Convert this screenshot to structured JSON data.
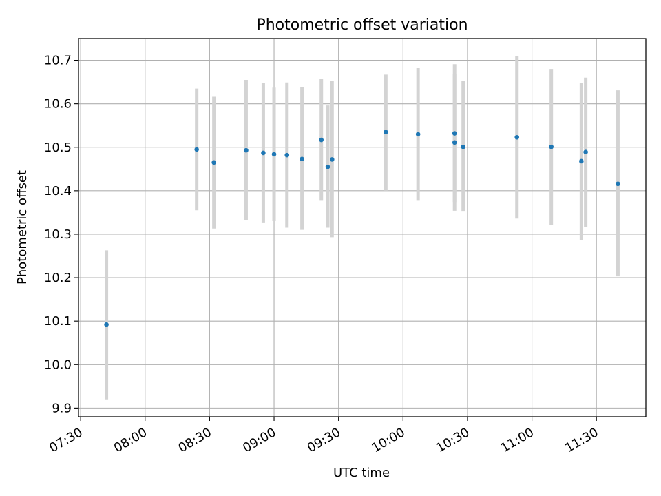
{
  "chart_data": {
    "type": "scatter",
    "title": "Photometric offset variation",
    "xlabel": "UTC time",
    "ylabel": "Photometric offset",
    "x_tick_labels": [
      "07:30",
      "08:00",
      "08:30",
      "09:00",
      "09:30",
      "10:00",
      "10:30",
      "11:00",
      "11:30"
    ],
    "y_tick_labels": [
      "9.9",
      "10.0",
      "10.1",
      "10.2",
      "10.3",
      "10.4",
      "10.5",
      "10.6",
      "10.7"
    ],
    "xlim": [
      "07:29",
      "11:53"
    ],
    "ylim": [
      9.88,
      10.75
    ],
    "grid": true,
    "colors": {
      "point": "#1f77b4",
      "errorbar": "#d3d3d3",
      "grid": "#b0b0b0"
    },
    "points": [
      {
        "x": "07:42",
        "y": 10.092,
        "lo": 9.92,
        "hi": 10.263
      },
      {
        "x": "08:24",
        "y": 10.495,
        "lo": 10.355,
        "hi": 10.635
      },
      {
        "x": "08:32",
        "y": 10.465,
        "lo": 10.313,
        "hi": 10.616
      },
      {
        "x": "08:47",
        "y": 10.493,
        "lo": 10.332,
        "hi": 10.655
      },
      {
        "x": "08:55",
        "y": 10.487,
        "lo": 10.327,
        "hi": 10.647
      },
      {
        "x": "09:00",
        "y": 10.484,
        "lo": 10.33,
        "hi": 10.637
      },
      {
        "x": "09:06",
        "y": 10.482,
        "lo": 10.315,
        "hi": 10.649
      },
      {
        "x": "09:13",
        "y": 10.473,
        "lo": 10.31,
        "hi": 10.638
      },
      {
        "x": "09:22",
        "y": 10.517,
        "lo": 10.377,
        "hi": 10.658
      },
      {
        "x": "09:25",
        "y": 10.455,
        "lo": 10.315,
        "hi": 10.596
      },
      {
        "x": "09:27",
        "y": 10.472,
        "lo": 10.293,
        "hi": 10.652
      },
      {
        "x": "09:52",
        "y": 10.535,
        "lo": 10.4,
        "hi": 10.667
      },
      {
        "x": "10:07",
        "y": 10.53,
        "lo": 10.377,
        "hi": 10.683
      },
      {
        "x": "10:24",
        "y": 10.532,
        "lo": 10.374,
        "hi": 10.691
      },
      {
        "x": "10:24",
        "y": 10.511,
        "lo": 10.354,
        "hi": 10.668
      },
      {
        "x": "10:28",
        "y": 10.501,
        "lo": 10.352,
        "hi": 10.652
      },
      {
        "x": "10:53",
        "y": 10.523,
        "lo": 10.336,
        "hi": 10.71
      },
      {
        "x": "11:09",
        "y": 10.501,
        "lo": 10.321,
        "hi": 10.68
      },
      {
        "x": "11:23",
        "y": 10.468,
        "lo": 10.287,
        "hi": 10.648
      },
      {
        "x": "11:25",
        "y": 10.489,
        "lo": 10.316,
        "hi": 10.66
      },
      {
        "x": "11:40",
        "y": 10.416,
        "lo": 10.203,
        "hi": 10.631
      }
    ]
  }
}
